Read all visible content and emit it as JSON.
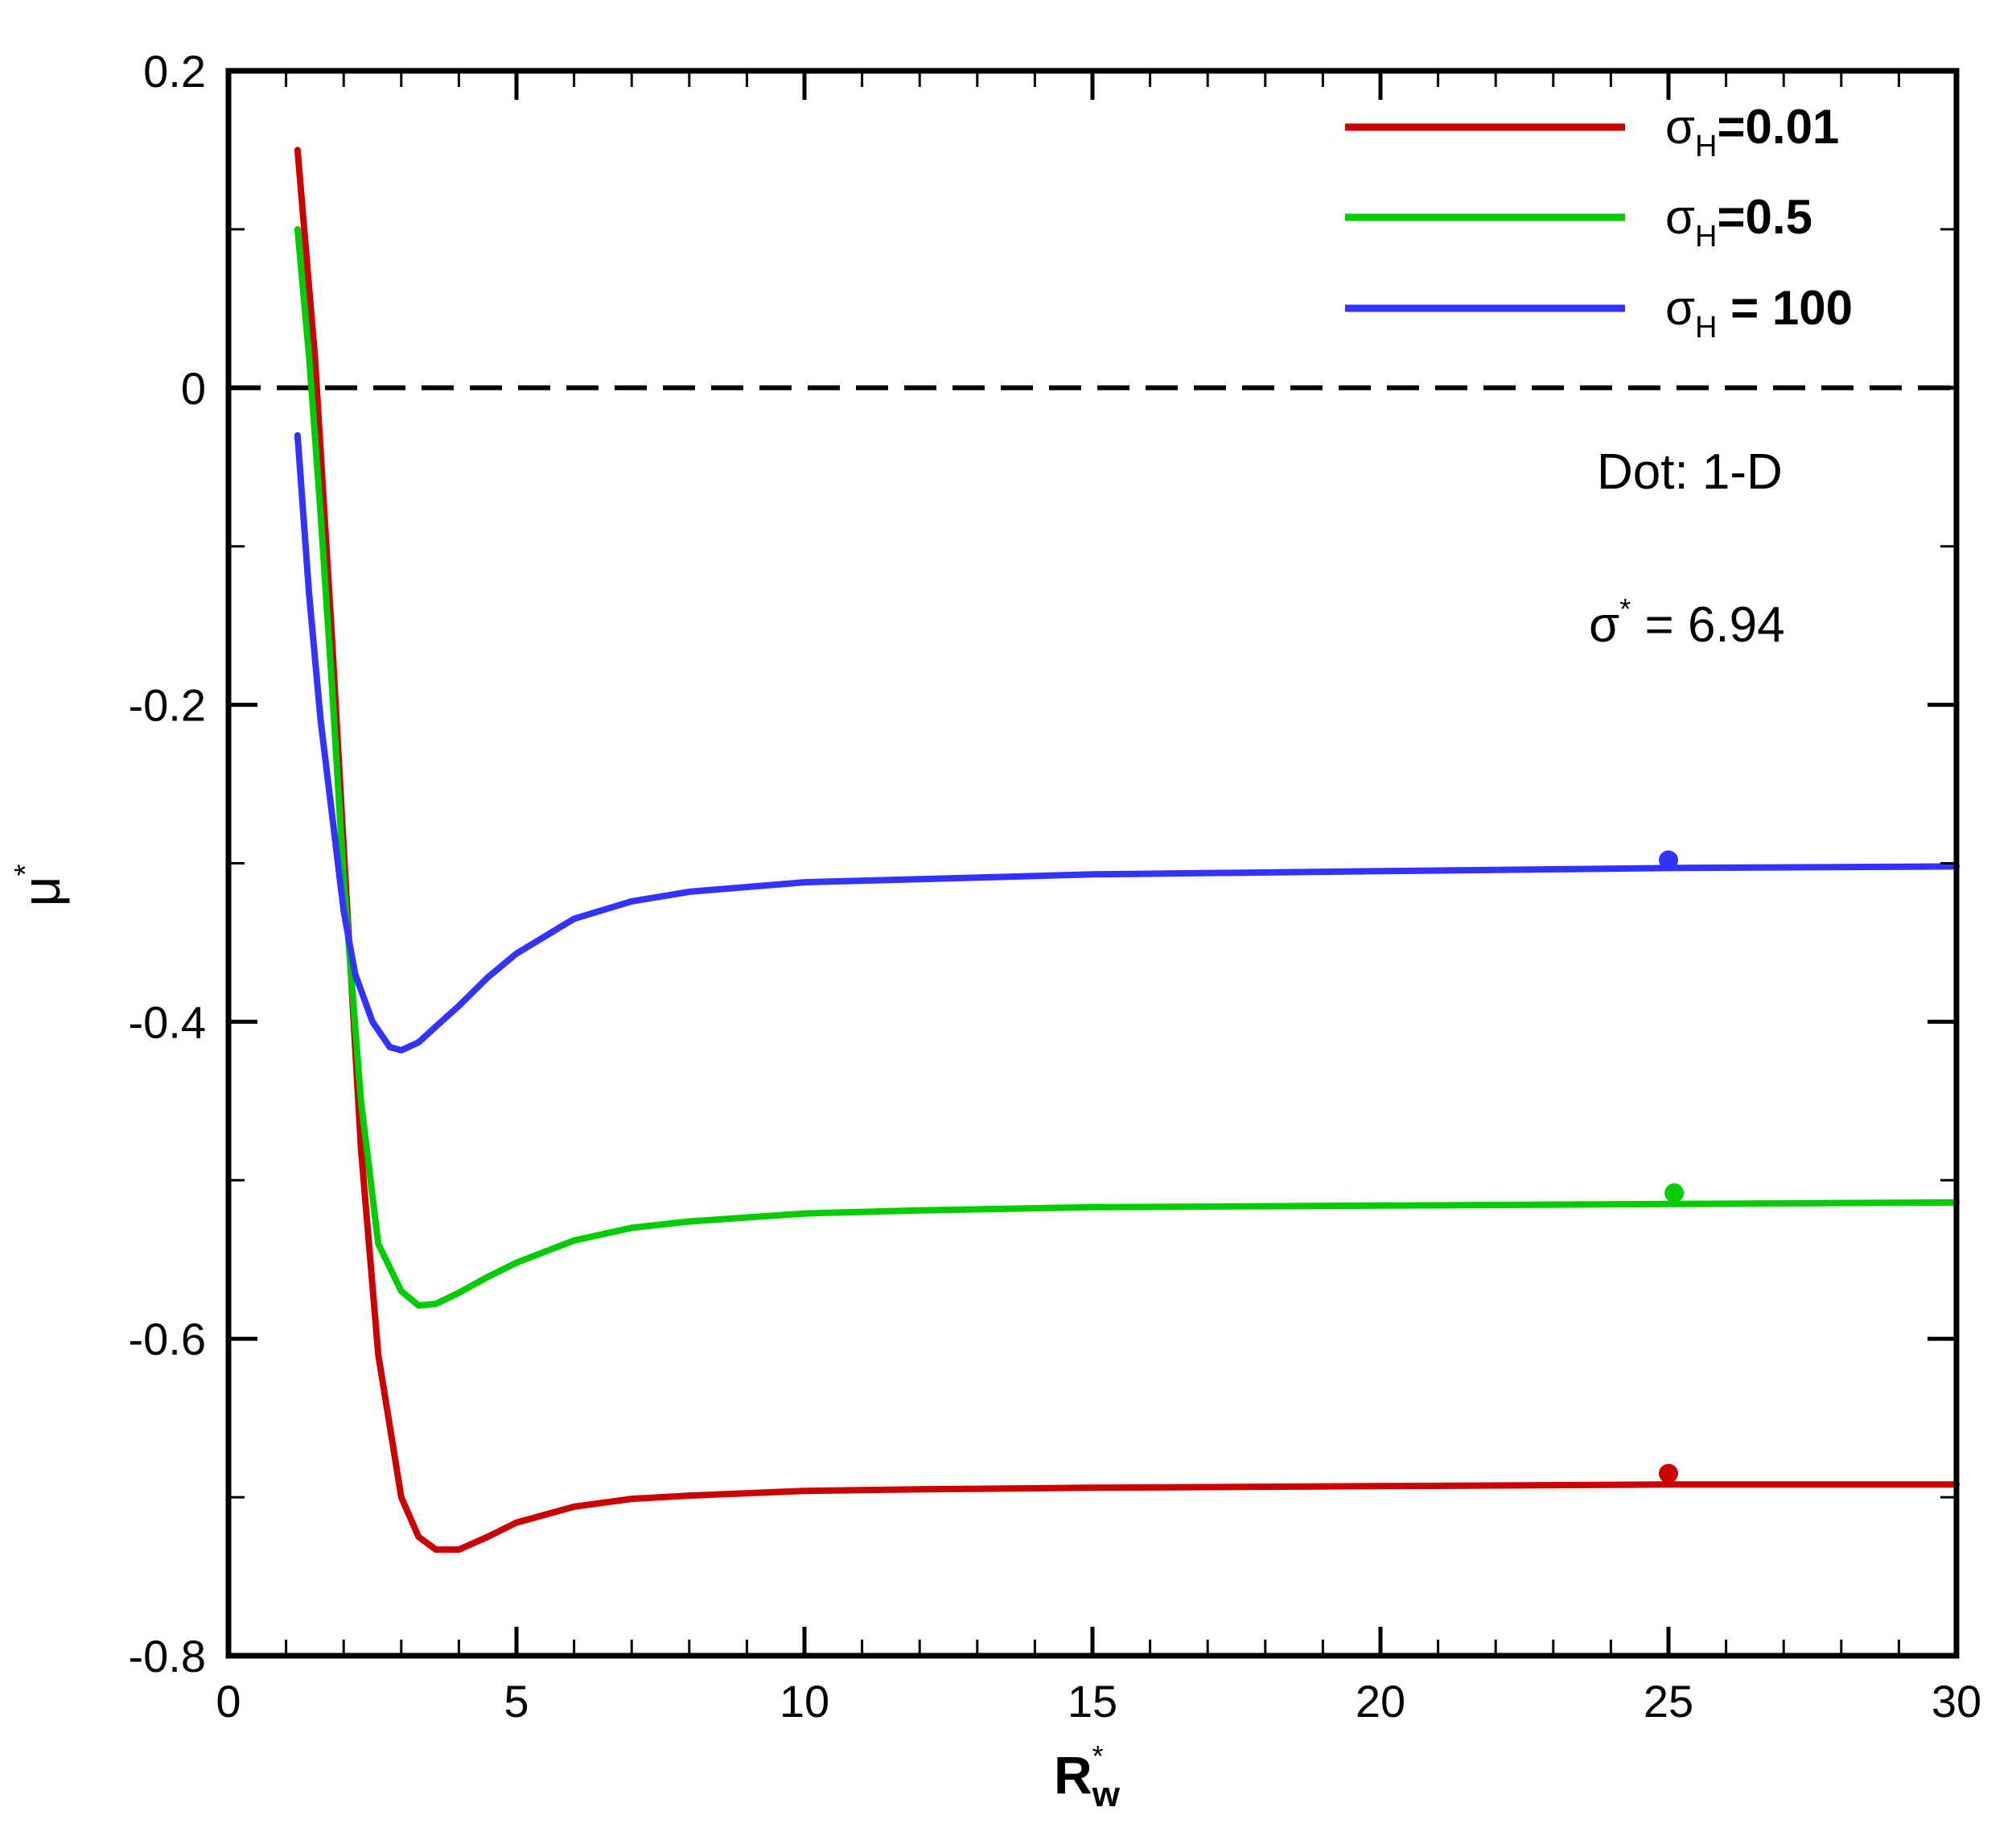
{
  "chart_data": {
    "type": "line",
    "xlabel": "R",
    "xlabel_superscript": "*",
    "xlabel_subscript": "w",
    "ylabel": "μ",
    "ylabel_superscript": "*",
    "xlim": [
      0,
      30
    ],
    "ylim": [
      -0.8,
      0.2
    ],
    "x_ticks": [
      0,
      5,
      10,
      15,
      20,
      25,
      30
    ],
    "x_tick_labels": [
      "0",
      "5",
      "10",
      "15",
      "20",
      "25",
      "30"
    ],
    "y_ticks": [
      0.2,
      0,
      -0.2,
      -0.4,
      -0.6,
      -0.8
    ],
    "y_tick_labels": [
      "0.2",
      "0",
      "-0.2",
      "-0.4",
      "-0.6",
      "-0.8"
    ],
    "grid": false,
    "legend_position": "top-right",
    "reference_line": {
      "y": 0,
      "style": "dashed",
      "color": "#000000"
    },
    "annotations": {
      "dot_note": "Dot: 1-D",
      "sigma_symbol": "σ",
      "sigma_superscript": "*",
      "sigma_value": " = 6.94"
    },
    "series": [
      {
        "name": "σ_H=0.01",
        "legend_symbol": "σ",
        "legend_sub": "H",
        "legend_value": "=0.01",
        "color": "#cc0000",
        "x": [
          1.2,
          1.5,
          1.8,
          2.0,
          2.3,
          2.6,
          3.0,
          3.3,
          3.6,
          4.0,
          4.5,
          5.0,
          6.0,
          7.0,
          8.0,
          10.0,
          12.0,
          15.0,
          20.0,
          25.0,
          30.0
        ],
        "y": [
          0.15,
          0.02,
          -0.16,
          -0.29,
          -0.48,
          -0.61,
          -0.7,
          -0.725,
          -0.733,
          -0.733,
          -0.725,
          -0.716,
          -0.706,
          -0.701,
          -0.699,
          -0.696,
          -0.695,
          -0.694,
          -0.693,
          -0.692,
          -0.692
        ],
        "dot": {
          "x": 25.0,
          "y": -0.685
        }
      },
      {
        "name": "σ_H=0.5",
        "legend_symbol": "σ",
        "legend_sub": "H",
        "legend_value": "=0.5",
        "color": "#00cc00",
        "x": [
          1.2,
          1.4,
          1.6,
          1.8,
          2.0,
          2.3,
          2.6,
          3.0,
          3.3,
          3.6,
          4.0,
          4.5,
          5.0,
          6.0,
          7.0,
          8.0,
          10.0,
          12.0,
          15.0,
          20.0,
          25.0,
          30.0
        ],
        "y": [
          0.1,
          0.02,
          -0.08,
          -0.19,
          -0.31,
          -0.45,
          -0.54,
          -0.57,
          -0.579,
          -0.578,
          -0.571,
          -0.561,
          -0.552,
          -0.538,
          -0.53,
          -0.526,
          -0.521,
          -0.519,
          -0.517,
          -0.516,
          -0.515,
          -0.514
        ],
        "dot": {
          "x": 25.1,
          "y": -0.508
        }
      },
      {
        "name": "σ_H = 100",
        "legend_symbol": "σ",
        "legend_sub": "H",
        "legend_value": " = 100",
        "color": "#3333ff",
        "x": [
          1.2,
          1.4,
          1.6,
          1.8,
          2.0,
          2.2,
          2.5,
          2.8,
          3.0,
          3.3,
          3.6,
          4.0,
          4.5,
          5.0,
          6.0,
          7.0,
          8.0,
          10.0,
          12.0,
          15.0,
          20.0,
          25.0,
          30.0
        ],
        "y": [
          -0.03,
          -0.13,
          -0.21,
          -0.27,
          -0.33,
          -0.37,
          -0.4,
          -0.416,
          -0.418,
          -0.413,
          -0.403,
          -0.39,
          -0.372,
          -0.357,
          -0.335,
          -0.324,
          -0.318,
          -0.312,
          -0.31,
          -0.307,
          -0.305,
          -0.303,
          -0.302
        ],
        "dot": {
          "x": 25.0,
          "y": -0.298
        }
      }
    ]
  }
}
